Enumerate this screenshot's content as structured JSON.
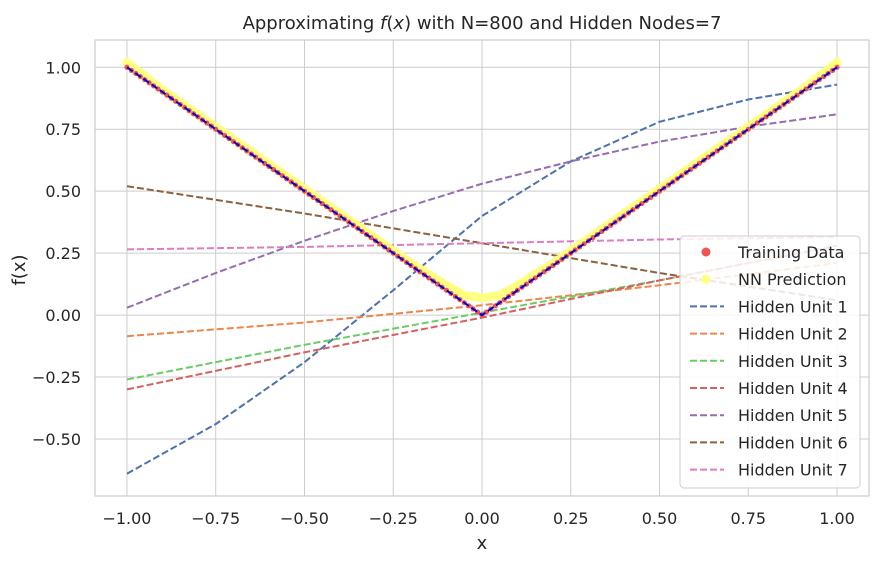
{
  "chart_data": {
    "type": "line",
    "title_parts": [
      "Approximating ",
      "f",
      "(",
      "x",
      ")",
      " with N=800 and Hidden Nodes=7"
    ],
    "xlabel": "x",
    "ylabel": "f(x)",
    "xlim": [
      -1.09,
      1.09
    ],
    "ylim": [
      -0.73,
      1.11
    ],
    "xticks": [
      -1.0,
      -0.75,
      -0.5,
      -0.25,
      0.0,
      0.25,
      0.5,
      0.75,
      1.0
    ],
    "xtick_labels": [
      "−1.00",
      "−0.75",
      "−0.50",
      "−0.25",
      "0.00",
      "0.25",
      "0.50",
      "0.75",
      "1.00"
    ],
    "yticks": [
      -0.5,
      -0.25,
      0.0,
      0.25,
      0.5,
      0.75,
      1.0
    ],
    "ytick_labels": [
      "−0.50",
      "−0.25",
      "0.00",
      "0.25",
      "0.50",
      "0.75",
      "1.00"
    ],
    "grid": true,
    "legend_position": "lower-right",
    "colors": {
      "training": "#f05454",
      "prediction": "#ffff80",
      "target_line": "#0000cc",
      "h1": "#4c72b0",
      "h2": "#ee854a",
      "h3": "#6acc64",
      "h4": "#d65f5f",
      "h5": "#956cb4",
      "h6": "#8c613c",
      "h7": "#dc7ec0"
    },
    "training_data": {
      "name": "Training Data",
      "x": [
        -1.0,
        -0.9,
        -0.8,
        -0.7,
        -0.6,
        -0.5,
        -0.4,
        -0.3,
        -0.2,
        -0.1,
        -0.05,
        0.0,
        0.05,
        0.1,
        0.2,
        0.3,
        0.4,
        0.5,
        0.6,
        0.7,
        0.8,
        0.9,
        1.0
      ],
      "y": [
        1.0,
        0.9,
        0.8,
        0.7,
        0.6,
        0.5,
        0.4,
        0.3,
        0.2,
        0.1,
        0.05,
        0.0,
        0.05,
        0.1,
        0.2,
        0.3,
        0.4,
        0.5,
        0.6,
        0.7,
        0.8,
        0.9,
        1.0
      ]
    },
    "nn_prediction": {
      "name": "NN Prediction",
      "x": [
        -1.0,
        -0.9,
        -0.8,
        -0.7,
        -0.6,
        -0.5,
        -0.4,
        -0.3,
        -0.2,
        -0.1,
        -0.05,
        0.0,
        0.05,
        0.1,
        0.2,
        0.3,
        0.4,
        0.5,
        0.6,
        0.7,
        0.8,
        0.9,
        1.0
      ],
      "y": [
        1.02,
        0.91,
        0.81,
        0.71,
        0.61,
        0.51,
        0.41,
        0.31,
        0.21,
        0.12,
        0.08,
        0.07,
        0.08,
        0.12,
        0.21,
        0.31,
        0.41,
        0.51,
        0.61,
        0.71,
        0.81,
        0.91,
        1.02
      ]
    },
    "target": {
      "x": [
        -1.0,
        0.0,
        1.0
      ],
      "y": [
        1.0,
        0.0,
        1.0
      ]
    },
    "series": [
      {
        "name": "Hidden Unit 1",
        "x": [
          -1.0,
          -0.75,
          -0.5,
          -0.25,
          0.0,
          0.25,
          0.5,
          0.75,
          1.0
        ],
        "y": [
          -0.64,
          -0.44,
          -0.19,
          0.1,
          0.4,
          0.62,
          0.78,
          0.87,
          0.93
        ]
      },
      {
        "name": "Hidden Unit 2",
        "x": [
          -1.0,
          -0.5,
          0.0,
          0.5,
          1.0
        ],
        "y": [
          -0.085,
          -0.03,
          0.04,
          0.12,
          0.21
        ]
      },
      {
        "name": "Hidden Unit 3",
        "x": [
          -1.0,
          -0.5,
          0.0,
          0.5,
          1.0
        ],
        "y": [
          -0.26,
          -0.12,
          0.01,
          0.14,
          0.28
        ]
      },
      {
        "name": "Hidden Unit 4",
        "x": [
          -1.0,
          -0.5,
          0.0,
          0.5,
          1.0
        ],
        "y": [
          -0.3,
          -0.15,
          -0.01,
          0.14,
          0.28
        ]
      },
      {
        "name": "Hidden Unit 5",
        "x": [
          -1.0,
          -0.75,
          -0.5,
          -0.25,
          0.0,
          0.25,
          0.5,
          0.75,
          1.0
        ],
        "y": [
          0.03,
          0.17,
          0.3,
          0.42,
          0.53,
          0.62,
          0.7,
          0.76,
          0.81
        ]
      },
      {
        "name": "Hidden Unit 6",
        "x": [
          -1.0,
          -0.5,
          0.0,
          0.5,
          1.0
        ],
        "y": [
          0.52,
          0.41,
          0.29,
          0.17,
          0.06
        ]
      },
      {
        "name": "Hidden Unit 7",
        "x": [
          -1.0,
          -0.5,
          0.0,
          0.5,
          1.0
        ],
        "y": [
          0.265,
          0.275,
          0.29,
          0.305,
          0.315
        ]
      }
    ]
  }
}
